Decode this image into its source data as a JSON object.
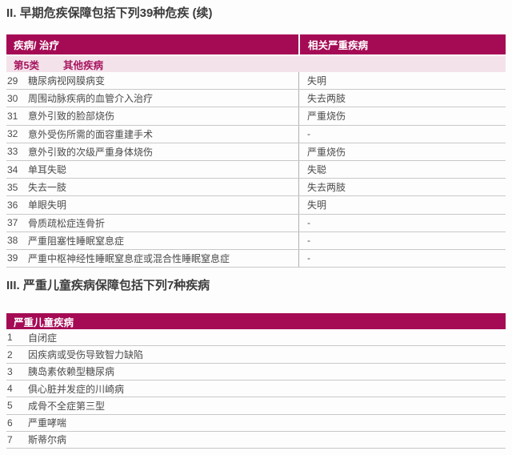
{
  "colors": {
    "brand": "#A50B55",
    "category-bg": "#F4E2EB",
    "category-text": "#A81760",
    "row-line": "#C8C8C8",
    "divider": "#B0B0B0",
    "title-text": "#3D3D3D",
    "body-text": "#4B4B4B",
    "page-bg": "#FDFDFD"
  },
  "section2": {
    "title": "II. 早期危疾保障包括下列39种危疾 (续)",
    "table": {
      "col_headers": [
        "疾病/ 治疗",
        "相关严重疾病"
      ],
      "category": {
        "label": "第5类",
        "name": "其他疾病"
      },
      "rows": [
        {
          "no": "29",
          "disease": "糖尿病视网膜病变",
          "related": "失明"
        },
        {
          "no": "30",
          "disease": "周围动脉疾病的血管介入治疗",
          "related": "失去两肢"
        },
        {
          "no": "31",
          "disease": "意外引致的脸部烧伤",
          "related": "严重烧伤"
        },
        {
          "no": "32",
          "disease": "意外受伤所需的面容重建手术",
          "related": "-"
        },
        {
          "no": "33",
          "disease": "意外引致的次级严重身体烧伤",
          "related": "严重烧伤"
        },
        {
          "no": "34",
          "disease": "单耳失聪",
          "related": "失聪"
        },
        {
          "no": "35",
          "disease": "失去一肢",
          "related": "失去两肢"
        },
        {
          "no": "36",
          "disease": "单眼失明",
          "related": "失明"
        },
        {
          "no": "37",
          "disease": "骨质疏松症连骨折",
          "related": "-"
        },
        {
          "no": "38",
          "disease": "严重阻塞性睡眠窒息症",
          "related": "-"
        },
        {
          "no": "39",
          "disease": "严重中枢神经性睡眠窒息症或混合性睡眠窒息症",
          "related": "-"
        }
      ]
    }
  },
  "section3": {
    "title": "III. 严重儿童疾病保障包括下列7种疾病",
    "table": {
      "header": "严重儿童疾病",
      "rows": [
        {
          "no": "1",
          "disease": "自闭症"
        },
        {
          "no": "2",
          "disease": "因疾病或受伤导致智力缺陷"
        },
        {
          "no": "3",
          "disease": "胰岛素依赖型糖尿病"
        },
        {
          "no": "4",
          "disease": "俱心脏并发症的川崎病"
        },
        {
          "no": "5",
          "disease": "成骨不全症第三型"
        },
        {
          "no": "6",
          "disease": "严重哮喘"
        },
        {
          "no": "7",
          "disease": "斯蒂尔病"
        }
      ]
    }
  }
}
